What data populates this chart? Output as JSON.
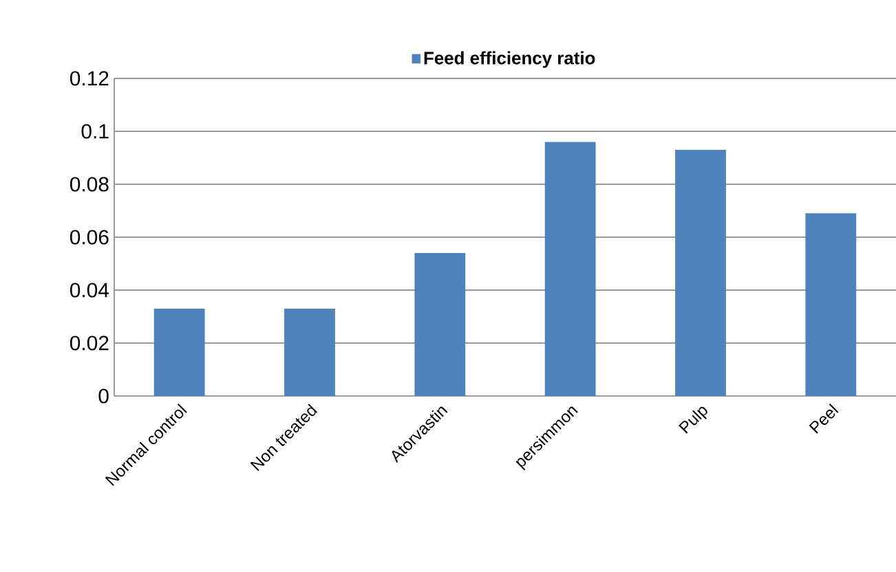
{
  "chart_data": {
    "type": "bar",
    "categories": [
      "Normal control",
      "Non treated",
      "Atorvastin",
      "persimmon",
      "Pulp",
      "Peel"
    ],
    "series": [
      {
        "name": "Feed efficiency ratio",
        "color": "#4f81bd",
        "values": [
          0.033,
          0.033,
          0.054,
          0.096,
          0.093,
          0.069
        ]
      }
    ],
    "ylim": [
      0,
      0.12
    ],
    "yticks": [
      0,
      0.02,
      0.04,
      0.06,
      0.08,
      0.1,
      0.12
    ],
    "grid": "y",
    "legend": "top"
  }
}
